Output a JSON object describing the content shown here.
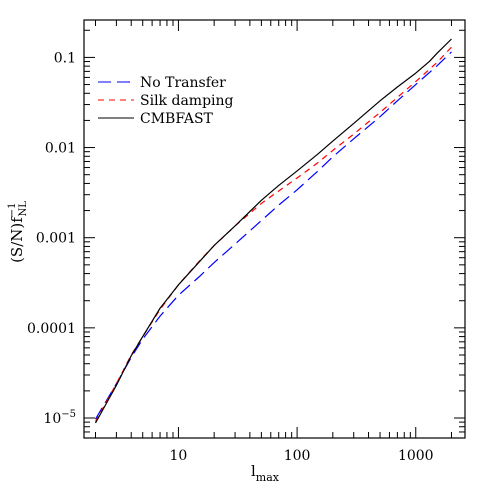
{
  "chart_data": {
    "type": "line",
    "title": "",
    "x_scale": "log",
    "y_scale": "log",
    "xlim": [
      1.6,
      2600
    ],
    "ylim": [
      6e-06,
      0.26
    ],
    "xlabel": {
      "main": "l",
      "sub": "max"
    },
    "ylabel": {
      "main": "(S/N)f",
      "sup": "−1",
      "sub": "NL"
    },
    "x_ticks": [
      {
        "value": 10,
        "label": "10"
      },
      {
        "value": 100,
        "label": "100"
      },
      {
        "value": 1000,
        "label": "1000"
      }
    ],
    "y_ticks": [
      {
        "value": 1e-05,
        "base": "10",
        "exp": "−5"
      },
      {
        "value": 0.0001,
        "label": "0.0001"
      },
      {
        "value": 0.001,
        "label": "0.001"
      },
      {
        "value": 0.01,
        "label": "0.01"
      },
      {
        "value": 0.1,
        "label": "0.1"
      }
    ],
    "grid": false,
    "legend": {
      "placement": "top-left"
    },
    "series": [
      {
        "name": "No Transfer",
        "color": "#0000ff",
        "dash": "long-dash",
        "points": [
          [
            2,
            9.7e-06
          ],
          [
            3,
            2.4e-05
          ],
          [
            4,
            4.7e-05
          ],
          [
            5,
            7.5e-05
          ],
          [
            7,
            0.000135
          ],
          [
            10,
            0.00023
          ],
          [
            15,
            0.00037
          ],
          [
            20,
            0.00053
          ],
          [
            30,
            0.00085
          ],
          [
            50,
            0.00155
          ],
          [
            70,
            0.0023
          ],
          [
            100,
            0.0034
          ],
          [
            150,
            0.0055
          ],
          [
            200,
            0.0079
          ],
          [
            300,
            0.0125
          ],
          [
            500,
            0.022
          ],
          [
            700,
            0.033
          ],
          [
            1000,
            0.05
          ],
          [
            1500,
            0.08
          ],
          [
            2000,
            0.115
          ]
        ]
      },
      {
        "name": "Silk damping",
        "color": "#ff0000",
        "dash": "short-dash",
        "points": [
          [
            2,
            9.1e-06
          ],
          [
            3,
            2.4e-05
          ],
          [
            4,
            5e-05
          ],
          [
            5,
            8e-05
          ],
          [
            7,
            0.00016
          ],
          [
            10,
            0.0003
          ],
          [
            15,
            0.00055
          ],
          [
            20,
            0.00082
          ],
          [
            30,
            0.00135
          ],
          [
            50,
            0.0024
          ],
          [
            70,
            0.0033
          ],
          [
            100,
            0.0046
          ],
          [
            150,
            0.0068
          ],
          [
            200,
            0.0093
          ],
          [
            300,
            0.0141
          ],
          [
            500,
            0.0245
          ],
          [
            700,
            0.036
          ],
          [
            1000,
            0.054
          ],
          [
            1500,
            0.087
          ],
          [
            2000,
            0.13
          ]
        ]
      },
      {
        "name": "CMBFAST",
        "color": "#000000",
        "dash": "solid",
        "points": [
          [
            2,
            8.8e-06
          ],
          [
            3,
            2.3e-05
          ],
          [
            4,
            4.9e-05
          ],
          [
            5,
            8e-05
          ],
          [
            7,
            0.000165
          ],
          [
            10,
            0.0003
          ],
          [
            15,
            0.00054
          ],
          [
            20,
            0.00082
          ],
          [
            30,
            0.00135
          ],
          [
            50,
            0.0026
          ],
          [
            70,
            0.0038
          ],
          [
            100,
            0.0055
          ],
          [
            150,
            0.0085
          ],
          [
            200,
            0.0118
          ],
          [
            300,
            0.0185
          ],
          [
            500,
            0.033
          ],
          [
            700,
            0.047
          ],
          [
            1000,
            0.067
          ],
          [
            1300,
            0.09
          ],
          [
            1500,
            0.11
          ],
          [
            2000,
            0.16
          ]
        ]
      }
    ]
  }
}
